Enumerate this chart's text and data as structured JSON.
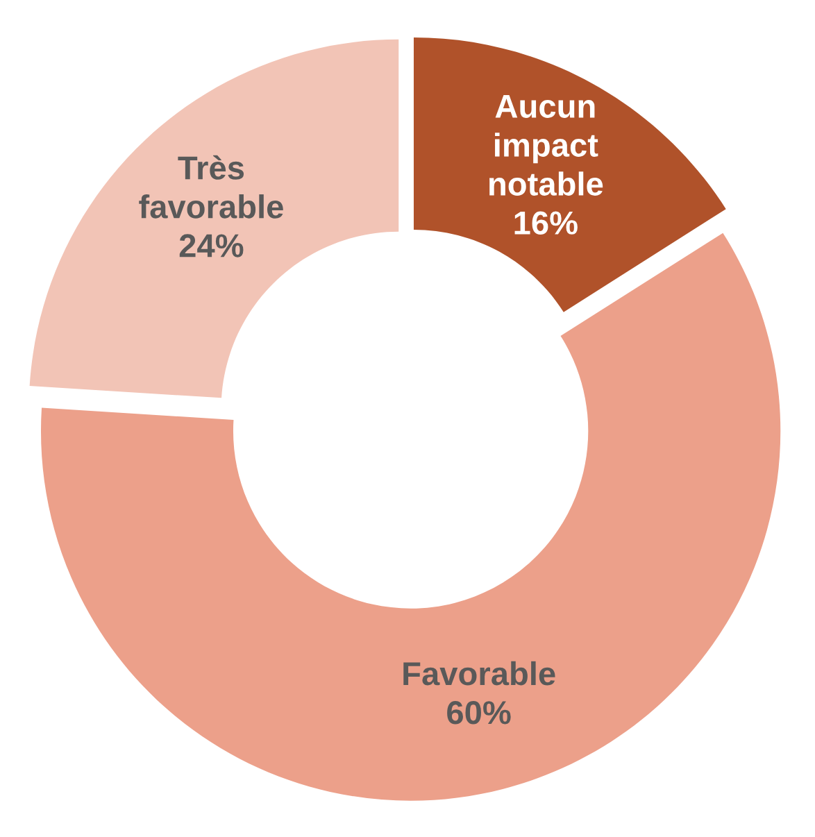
{
  "chart_data": {
    "type": "donut",
    "categories": [
      "Aucun impact notable",
      "Favorable",
      "Très favorable"
    ],
    "values": [
      16,
      60,
      24
    ],
    "colors": [
      "#b0522a",
      "#eca08a",
      "#f2c4b6"
    ],
    "value_labels": [
      "16%",
      "60%",
      "24%"
    ]
  }
}
